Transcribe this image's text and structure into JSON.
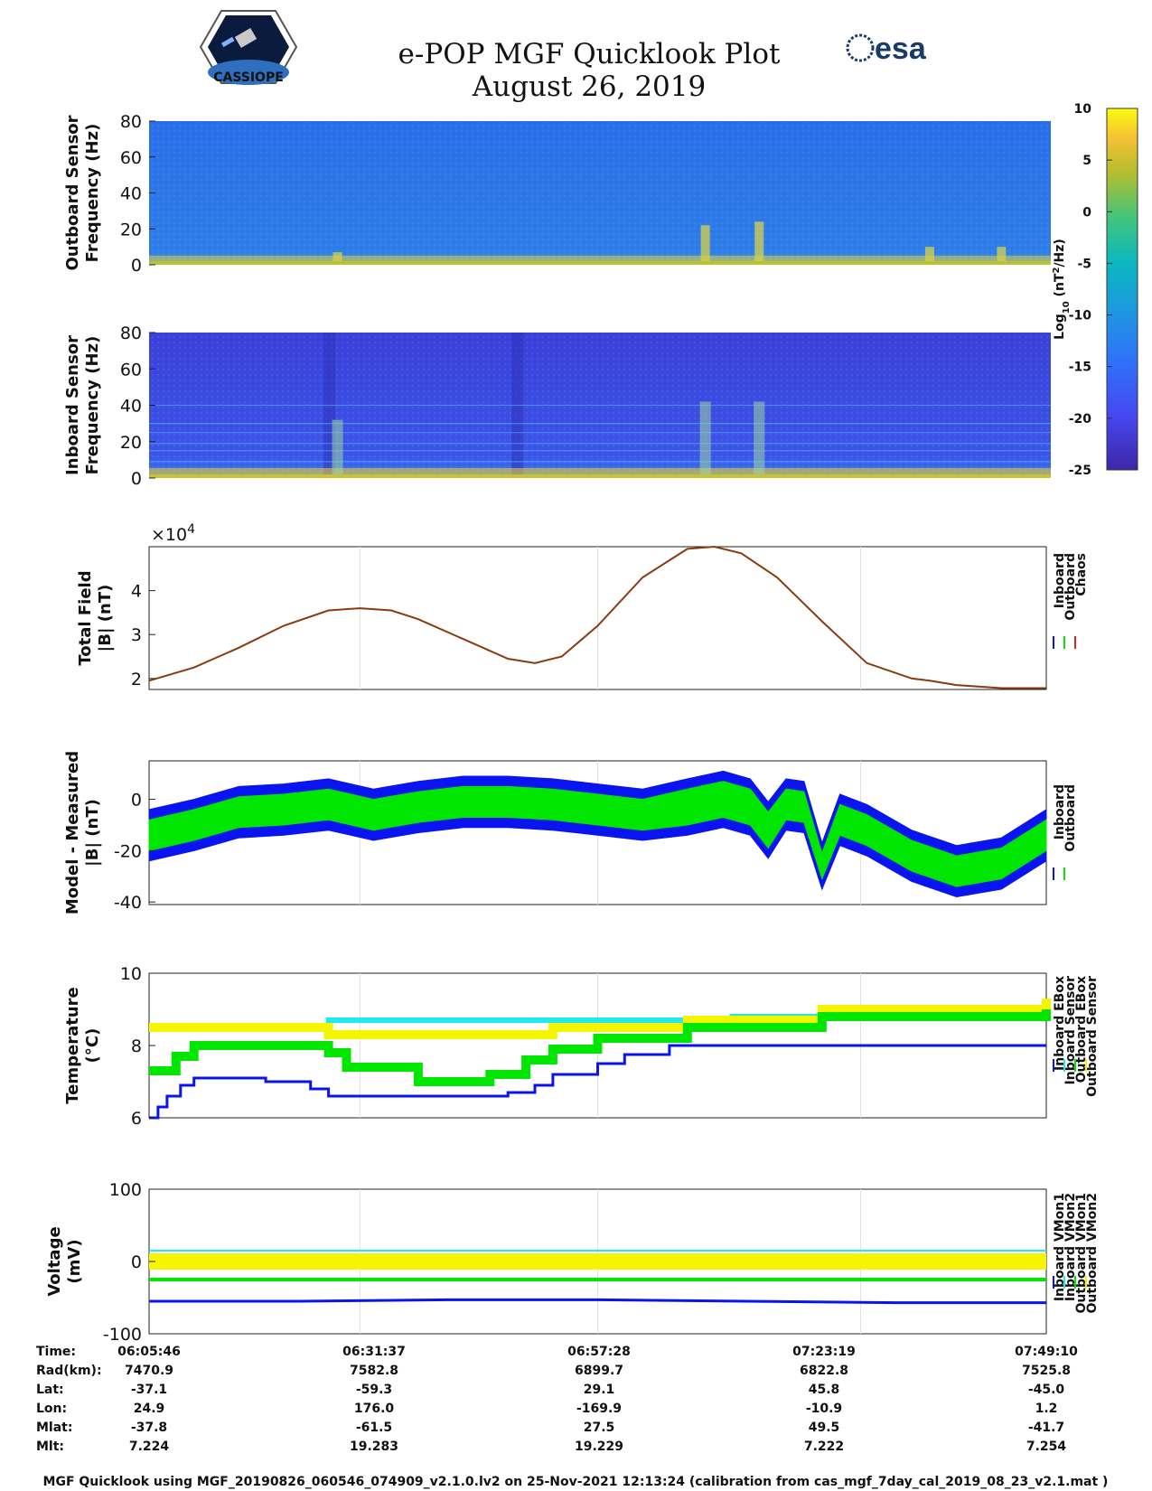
{
  "title": "e-POP MGF Quicklook Plot",
  "subtitle": "August 26, 2019",
  "logo_right_text": "esa",
  "logo_left_text": "CASSIOPE",
  "colors": {
    "inboard": "#0a14f0",
    "outboard": "#00e600",
    "chaos": "#e02020",
    "cyan": "#22e8f0",
    "yellow": "#f5f500",
    "total_field_line": "#8a3a10"
  },
  "colorbar": {
    "ticks": [
      "10",
      "5",
      "0",
      "-5",
      "-10",
      "-15",
      "-20",
      "-25"
    ],
    "range": [
      -25,
      10
    ],
    "label": "Log10 (nT2/Hz)"
  },
  "chart_data": [
    {
      "type": "heatmap",
      "name": "outboard-spectrogram",
      "ylabel": [
        "Outboard Sensor",
        "Frequency (Hz)"
      ],
      "yticks": [
        "80",
        "60",
        "40",
        "20",
        "0"
      ],
      "ylim": [
        0,
        80
      ],
      "background_log_power": -15,
      "bursts": [
        {
          "t_frac": 0.21,
          "max_hz": 5
        },
        {
          "t_frac": 0.62,
          "max_hz": 20
        },
        {
          "t_frac": 0.68,
          "max_hz": 22
        },
        {
          "t_frac": 0.87,
          "max_hz": 8
        },
        {
          "t_frac": 0.95,
          "max_hz": 8
        }
      ]
    },
    {
      "type": "heatmap",
      "name": "inboard-spectrogram",
      "ylabel": [
        "Inboard Sensor",
        "Frequency (Hz)"
      ],
      "yticks": [
        "80",
        "60",
        "40",
        "20",
        "0"
      ],
      "ylim": [
        0,
        80
      ],
      "background_log_power": -20,
      "harmonics_hz": [
        9,
        15,
        19,
        25,
        30,
        40
      ],
      "bursts": [
        {
          "t_frac": 0.21,
          "max_hz": 30
        },
        {
          "t_frac": 0.62,
          "max_hz": 40
        },
        {
          "t_frac": 0.68,
          "max_hz": 40
        }
      ]
    },
    {
      "type": "line",
      "name": "total-field",
      "ylabel": [
        "Total Field",
        "|B| (nT)"
      ],
      "exponent": "×10",
      "exponent_power": "4",
      "yticks": [
        "4",
        "3",
        "2"
      ],
      "ylim": [
        1.75,
        5.0
      ],
      "legend": [
        "Inboard",
        "Outboard",
        "Chaos"
      ],
      "x": [
        0,
        0.05,
        0.1,
        0.15,
        0.2,
        0.235,
        0.27,
        0.3,
        0.35,
        0.4,
        0.43,
        0.46,
        0.5,
        0.55,
        0.6,
        0.63,
        0.66,
        0.7,
        0.75,
        0.8,
        0.85,
        0.87,
        0.9,
        0.95,
        1.0
      ],
      "series": [
        {
          "name": "Outboard",
          "values": [
            1.95,
            2.25,
            2.7,
            3.2,
            3.55,
            3.6,
            3.55,
            3.35,
            2.9,
            2.45,
            2.35,
            2.5,
            3.2,
            4.3,
            4.95,
            5.0,
            4.85,
            4.3,
            3.3,
            2.35,
            2.0,
            1.95,
            1.85,
            1.78,
            1.78
          ]
        }
      ]
    },
    {
      "type": "line",
      "name": "model-minus-measured",
      "ylabel": [
        "Model - Measured",
        "|B| (nT)"
      ],
      "yticks": [
        "0",
        "-20",
        "-40"
      ],
      "ylim": [
        -41,
        15
      ],
      "legend": [
        "Inboard",
        "Outboard"
      ],
      "x": [
        0,
        0.05,
        0.1,
        0.15,
        0.2,
        0.25,
        0.3,
        0.35,
        0.4,
        0.45,
        0.5,
        0.55,
        0.6,
        0.64,
        0.67,
        0.69,
        0.71,
        0.73,
        0.75,
        0.77,
        0.8,
        0.85,
        0.9,
        0.95,
        1.0
      ],
      "series": [
        {
          "name": "Outboard center",
          "values": [
            -14,
            -10,
            -5,
            -4,
            -2,
            -6,
            -3,
            -1,
            -1,
            -2,
            -4,
            -6,
            -3,
            0,
            -3,
            -12,
            -2,
            -3,
            -26,
            -8,
            -12,
            -22,
            -28,
            -25,
            -14
          ]
        },
        {
          "name": "Outboard half-width",
          "values": [
            6,
            6,
            6,
            6,
            6,
            6,
            6,
            6,
            6,
            6,
            6,
            6,
            7,
            7,
            7,
            7,
            6,
            6,
            5,
            6,
            6,
            6,
            6,
            6,
            6
          ]
        }
      ]
    },
    {
      "type": "scatter",
      "name": "temperature",
      "ylabel": [
        "Temperature",
        "(°C)"
      ],
      "yticks": [
        "10",
        "8",
        "6"
      ],
      "ylim": [
        6,
        10
      ],
      "legend": [
        "Inboard EBox",
        "Inboard Sensor",
        "Outboard EBox",
        "Outboard Sensor"
      ],
      "series": [
        {
          "name": "Inboard EBox",
          "steps": [
            [
              0,
              6.0
            ],
            [
              0.01,
              6.3
            ],
            [
              0.02,
              6.6
            ],
            [
              0.035,
              6.9
            ],
            [
              0.05,
              7.1
            ],
            [
              0.13,
              7.0
            ],
            [
              0.18,
              6.8
            ],
            [
              0.2,
              6.6
            ],
            [
              0.3,
              6.6
            ],
            [
              0.4,
              6.7
            ],
            [
              0.43,
              6.9
            ],
            [
              0.45,
              7.2
            ],
            [
              0.5,
              7.5
            ],
            [
              0.53,
              7.75
            ],
            [
              0.58,
              8.0
            ],
            [
              1.0,
              8.0
            ]
          ]
        },
        {
          "name": "Inboard Sensor",
          "steps": [
            [
              0,
              8.5
            ],
            [
              0.2,
              8.7
            ],
            [
              0.43,
              8.7
            ],
            [
              0.65,
              8.8
            ],
            [
              0.85,
              9.0
            ],
            [
              1.0,
              9.2
            ]
          ]
        },
        {
          "name": "Outboard EBox",
          "steps": [
            [
              0,
              7.3
            ],
            [
              0.03,
              7.7
            ],
            [
              0.05,
              8.0
            ],
            [
              0.2,
              7.8
            ],
            [
              0.22,
              7.4
            ],
            [
              0.3,
              7.0
            ],
            [
              0.38,
              7.2
            ],
            [
              0.42,
              7.6
            ],
            [
              0.45,
              7.9
            ],
            [
              0.5,
              8.2
            ],
            [
              0.6,
              8.5
            ],
            [
              0.75,
              8.8
            ],
            [
              1.0,
              9.0
            ]
          ]
        },
        {
          "name": "Outboard Sensor",
          "steps": [
            [
              0,
              8.5
            ],
            [
              0.2,
              8.3
            ],
            [
              0.42,
              8.3
            ],
            [
              0.45,
              8.5
            ],
            [
              0.6,
              8.7
            ],
            [
              0.75,
              9.0
            ],
            [
              1.0,
              9.3
            ]
          ]
        }
      ]
    },
    {
      "type": "scatter",
      "name": "voltage",
      "ylabel": [
        "Voltage",
        "(mV)"
      ],
      "yticks": [
        "100",
        "0",
        "-100"
      ],
      "ylim": [
        -100,
        100
      ],
      "legend": [
        "Inboard VMon1",
        "Inboard VMon2",
        "Outboard VMon1",
        "Outboard VMon2"
      ],
      "series": [
        {
          "name": "Inboard VMon1",
          "values": [
            -55,
            -55,
            -53,
            -53,
            -55,
            -57,
            -57
          ]
        },
        {
          "name": "Inboard VMon2",
          "values": [
            15,
            15,
            15,
            15,
            15,
            15,
            15
          ]
        },
        {
          "name": "Outboard VMon1",
          "values": [
            -25,
            -25,
            -25,
            -25,
            -25,
            -25,
            -25
          ]
        },
        {
          "name": "Outboard VMon2",
          "values": [
            0,
            0,
            0,
            0,
            0,
            0,
            0
          ]
        }
      ]
    }
  ],
  "ephemeris": {
    "row_labels": [
      "Time:",
      "Rad(km):",
      "Lat:",
      "Lon:",
      "Mlat:",
      "Mlt:"
    ],
    "columns": [
      {
        "time": "06:05:46",
        "rad": "7470.9",
        "lat": "-37.1",
        "lon": "24.9",
        "mlat": "-37.8",
        "mlt": "7.224"
      },
      {
        "time": "06:31:37",
        "rad": "7582.8",
        "lat": "-59.3",
        "lon": "176.0",
        "mlat": "-61.5",
        "mlt": "19.283"
      },
      {
        "time": "06:57:28",
        "rad": "6899.7",
        "lat": "29.1",
        "lon": "-169.9",
        "mlat": "27.5",
        "mlt": "19.229"
      },
      {
        "time": "07:23:19",
        "rad": "6822.8",
        "lat": "45.8",
        "lon": "-10.9",
        "mlat": "49.5",
        "mlt": "7.222"
      },
      {
        "time": "07:49:10",
        "rad": "7525.8",
        "lat": "-45.0",
        "lon": "1.2",
        "mlat": "-41.7",
        "mlt": "7.254"
      }
    ]
  },
  "footer": "MGF Quicklook using MGF_20190826_060546_074909_v2.1.0.lv2 on 25-Nov-2021 12:13:24 (calibration from cas_mgf_7day_cal_2019_08_23_v2.1.mat )"
}
